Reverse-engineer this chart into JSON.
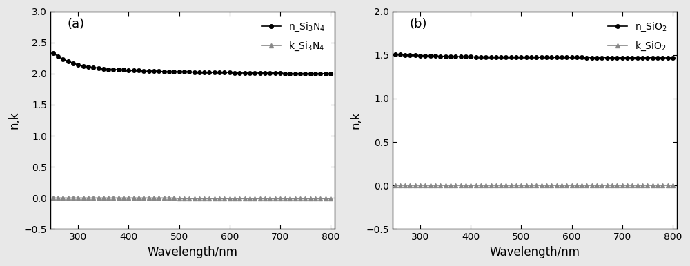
{
  "wavelengths_dense": [
    250,
    260,
    270,
    280,
    290,
    300,
    310,
    320,
    330,
    340,
    350,
    360,
    370,
    380,
    390,
    400,
    410,
    420,
    430,
    440,
    450,
    460,
    470,
    480,
    490,
    500,
    510,
    520,
    530,
    540,
    550,
    560,
    570,
    580,
    590,
    600,
    610,
    620,
    630,
    640,
    650,
    660,
    670,
    680,
    690,
    700,
    710,
    720,
    730,
    740,
    750,
    760,
    770,
    780,
    790,
    800
  ],
  "n_Si3N4": [
    2.33,
    2.28,
    2.23,
    2.2,
    2.17,
    2.14,
    2.12,
    2.11,
    2.1,
    2.09,
    2.08,
    2.07,
    2.07,
    2.06,
    2.06,
    2.05,
    2.05,
    2.05,
    2.04,
    2.04,
    2.04,
    2.04,
    2.03,
    2.03,
    2.03,
    2.03,
    2.03,
    2.03,
    2.02,
    2.02,
    2.02,
    2.02,
    2.02,
    2.02,
    2.02,
    2.02,
    2.01,
    2.01,
    2.01,
    2.01,
    2.01,
    2.01,
    2.01,
    2.01,
    2.01,
    2.01,
    2.0,
    2.0,
    2.0,
    2.0,
    2.0,
    2.0,
    2.0,
    2.0,
    2.0,
    2.0
  ],
  "k_Si3N4": [
    0.0,
    0.0,
    0.0,
    0.0,
    0.0,
    0.0,
    0.0,
    0.0,
    0.0,
    0.0,
    0.0,
    0.0,
    0.0,
    0.0,
    0.0,
    0.0,
    0.0,
    0.0,
    0.0,
    0.0,
    0.0,
    0.0,
    0.0,
    0.0,
    0.0,
    -0.01,
    -0.01,
    -0.01,
    -0.01,
    -0.01,
    -0.01,
    -0.01,
    -0.01,
    -0.01,
    -0.01,
    -0.01,
    -0.01,
    -0.01,
    -0.01,
    -0.01,
    -0.01,
    -0.01,
    -0.01,
    -0.01,
    -0.01,
    -0.01,
    -0.01,
    -0.01,
    -0.01,
    -0.01,
    -0.01,
    -0.01,
    -0.01,
    -0.01,
    -0.01,
    -0.01
  ],
  "n_SiO2": [
    1.51,
    1.506,
    1.502,
    1.499,
    1.496,
    1.493,
    1.491,
    1.489,
    1.487,
    1.486,
    1.484,
    1.483,
    1.482,
    1.481,
    1.48,
    1.479,
    1.478,
    1.478,
    1.477,
    1.476,
    1.476,
    1.475,
    1.475,
    1.475,
    1.474,
    1.474,
    1.473,
    1.473,
    1.473,
    1.473,
    1.472,
    1.472,
    1.472,
    1.471,
    1.471,
    1.471,
    1.471,
    1.471,
    1.47,
    1.47,
    1.47,
    1.47,
    1.47,
    1.469,
    1.469,
    1.469,
    1.469,
    1.469,
    1.468,
    1.468,
    1.468,
    1.468,
    1.467,
    1.467,
    1.467,
    1.467
  ],
  "k_SiO2": [
    0.0,
    0.0,
    0.0,
    0.0,
    0.0,
    0.0,
    0.0,
    0.0,
    0.0,
    0.0,
    0.0,
    0.0,
    0.0,
    0.0,
    0.0,
    0.0,
    0.0,
    0.0,
    0.0,
    0.0,
    0.0,
    0.0,
    0.0,
    0.0,
    0.0,
    0.0,
    0.0,
    0.0,
    0.0,
    0.0,
    0.0,
    0.0,
    0.0,
    0.0,
    0.0,
    0.0,
    0.0,
    0.0,
    0.0,
    0.0,
    0.0,
    0.0,
    0.0,
    0.0,
    0.0,
    0.0,
    0.0,
    0.0,
    0.0,
    0.0,
    0.0,
    0.0,
    0.0,
    0.0,
    0.0,
    0.0
  ],
  "color_n": "#000000",
  "color_k": "#888888",
  "marker_n": "o",
  "marker_k": "^",
  "markersize_n": 4,
  "markersize_k": 4,
  "linewidth": 1.2,
  "xlabel": "Wavelength/nm",
  "ylabel": "n,k",
  "xlim": [
    245,
    808
  ],
  "ylim_a": [
    -0.5,
    3.0
  ],
  "ylim_b": [
    -0.5,
    2.0
  ],
  "yticks_a": [
    -0.5,
    0.0,
    0.5,
    1.0,
    1.5,
    2.0,
    2.5,
    3.0
  ],
  "yticks_b": [
    -0.5,
    0.0,
    0.5,
    1.0,
    1.5,
    2.0
  ],
  "xticks": [
    300,
    400,
    500,
    600,
    700,
    800
  ],
  "label_n_a": "n_Si$_3$N$_4$",
  "label_k_a": "k_Si$_3$N$_4$",
  "label_n_b": "n_SiO$_2$",
  "label_k_b": "k_SiO$_2$",
  "panel_a_label": "(a)",
  "panel_b_label": "(b)",
  "legend_fontsize": 10,
  "tick_fontsize": 10,
  "label_fontsize": 12,
  "panel_label_fontsize": 13,
  "fig_facecolor": "#e8e8e8",
  "plot_facecolor": "#ffffff"
}
